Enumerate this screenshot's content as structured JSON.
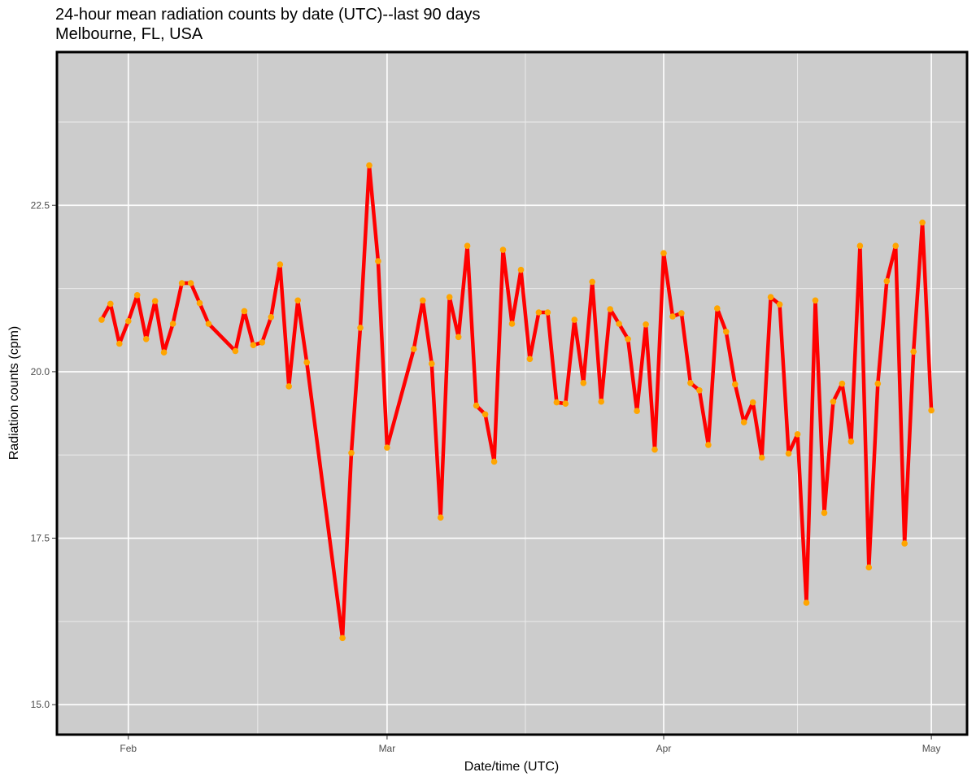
{
  "chart_data": {
    "type": "line",
    "title": "24-hour mean radiation counts by date (UTC)--last 90 days",
    "subtitle": "Melbourne, FL, USA",
    "xlabel": "Date/time (UTC)",
    "ylabel": "Radiation counts (cpm)",
    "x_ticks": [
      {
        "date": "2024-02-01",
        "label": "Feb"
      },
      {
        "date": "2024-03-01",
        "label": "Mar"
      },
      {
        "date": "2024-04-01",
        "label": "Apr"
      },
      {
        "date": "2024-05-01",
        "label": "May"
      }
    ],
    "y_ticks": [
      {
        "value": 15.0,
        "label": "15.0"
      },
      {
        "value": 17.5,
        "label": "17.5"
      },
      {
        "value": 20.0,
        "label": "20.0"
      },
      {
        "value": 22.5,
        "label": "22.5"
      }
    ],
    "xlim": [
      "2024-01-24",
      "2024-05-05"
    ],
    "ylim": [
      14.55,
      24.8
    ],
    "grid": true,
    "line_color": "#ff0000",
    "point_color": "#ffa500",
    "panel_color": "#cccccc",
    "series": [
      {
        "x": [
          "2024-01-29",
          "2024-01-30",
          "2024-01-31",
          "2024-02-01",
          "2024-02-02",
          "2024-02-03",
          "2024-02-04",
          "2024-02-05",
          "2024-02-06",
          "2024-02-07",
          "2024-02-08",
          "2024-02-09",
          "2024-02-10",
          "2024-02-13",
          "2024-02-14",
          "2024-02-15",
          "2024-02-16",
          "2024-02-17",
          "2024-02-18",
          "2024-02-19",
          "2024-02-20",
          "2024-02-21",
          "2024-02-25",
          "2024-02-26",
          "2024-02-27",
          "2024-02-28",
          "2024-02-29",
          "2024-03-01",
          "2024-03-04",
          "2024-03-05",
          "2024-03-06",
          "2024-03-07",
          "2024-03-08",
          "2024-03-09",
          "2024-03-10",
          "2024-03-11",
          "2024-03-12",
          "2024-03-13",
          "2024-03-14",
          "2024-03-15",
          "2024-03-16",
          "2024-03-17",
          "2024-03-18",
          "2024-03-19",
          "2024-03-20",
          "2024-03-21",
          "2024-03-22",
          "2024-03-23",
          "2024-03-24",
          "2024-03-25",
          "2024-03-26",
          "2024-03-27",
          "2024-03-28",
          "2024-03-29",
          "2024-03-30",
          "2024-03-31",
          "2024-04-01",
          "2024-04-02",
          "2024-04-03",
          "2024-04-04",
          "2024-04-05",
          "2024-04-06",
          "2024-04-07",
          "2024-04-08",
          "2024-04-09",
          "2024-04-10",
          "2024-04-11",
          "2024-04-12",
          "2024-04-13",
          "2024-04-14",
          "2024-04-15",
          "2024-04-16",
          "2024-04-17",
          "2024-04-18",
          "2024-04-19",
          "2024-04-20",
          "2024-04-21",
          "2024-04-22",
          "2024-04-23",
          "2024-04-24",
          "2024-04-25",
          "2024-04-26",
          "2024-04-27",
          "2024-04-28",
          "2024-04-29",
          "2024-04-30",
          "2024-05-01"
        ],
        "y": [
          20.78,
          21.02,
          20.42,
          20.76,
          21.15,
          20.49,
          21.06,
          20.29,
          20.72,
          21.33,
          21.33,
          21.03,
          20.72,
          20.31,
          20.91,
          20.4,
          20.44,
          20.82,
          21.61,
          19.78,
          21.07,
          20.14,
          16.0,
          18.78,
          20.66,
          23.1,
          21.66,
          18.86,
          20.34,
          21.07,
          20.12,
          17.81,
          21.12,
          20.52,
          21.89,
          19.49,
          19.36,
          18.65,
          21.83,
          20.72,
          21.53,
          20.19,
          20.89,
          20.89,
          19.54,
          19.52,
          20.78,
          19.83,
          21.35,
          19.55,
          20.94,
          20.72,
          20.49,
          19.41,
          20.71,
          18.83,
          21.78,
          20.83,
          20.88,
          19.83,
          19.72,
          18.9,
          20.95,
          20.6,
          19.81,
          19.24,
          19.54,
          18.71,
          21.12,
          21.01,
          18.77,
          19.06,
          16.53,
          21.07,
          17.88,
          19.55,
          19.82,
          18.95,
          21.89,
          17.06,
          19.82,
          21.36,
          21.89,
          17.42,
          20.3,
          22.24,
          19.42
        ]
      }
    ]
  }
}
